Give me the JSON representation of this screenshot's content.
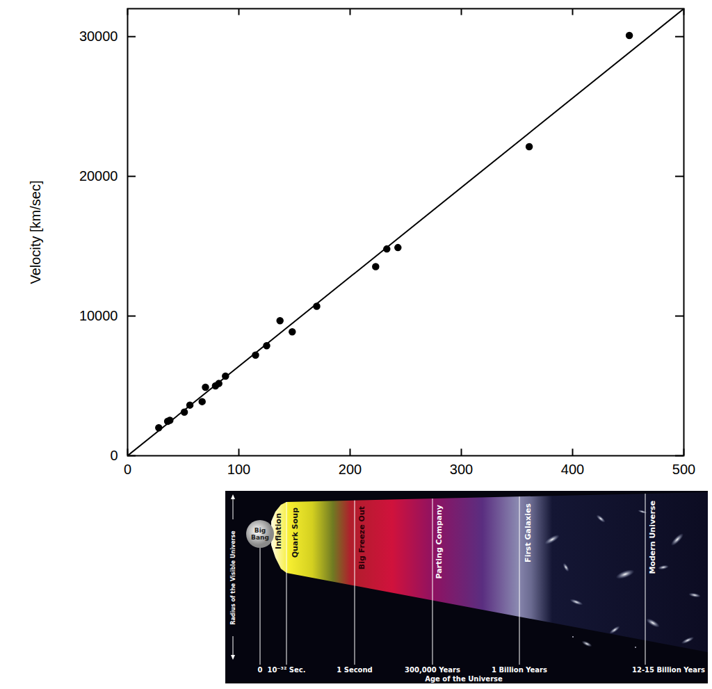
{
  "chart_data": {
    "type": "scatter",
    "ylabel": "Velocity [km/sec]",
    "series": [
      {
        "type": "scatter",
        "marker": "circle",
        "color": "#000000",
        "x": [
          28,
          36,
          38,
          51,
          56,
          67,
          70,
          79,
          82,
          88,
          115,
          125,
          137,
          148,
          170,
          223,
          233,
          243,
          361,
          451
        ],
        "values": [
          2000,
          2460,
          2540,
          3125,
          3625,
          3875,
          4900,
          5000,
          5170,
          5700,
          7200,
          7875,
          9670,
          8875,
          10700,
          13540,
          14800,
          14900,
          22125,
          30080
        ]
      },
      {
        "type": "line",
        "line_style": "solid",
        "color": "#000000",
        "x": [
          0,
          500
        ],
        "values": [
          0,
          32000
        ]
      }
    ],
    "xlim": [
      0,
      500
    ],
    "xticks": [
      0,
      100,
      200,
      300,
      400,
      500
    ],
    "ylim": [
      0,
      32000
    ],
    "yticks": [
      0,
      10000,
      20000,
      30000
    ]
  },
  "inset": {
    "title": "Age of the Universe",
    "side_label": "Radius of the Visible Universe",
    "origin": "Big Bang",
    "eras": [
      "Inflation",
      "Quark Soup",
      "Big Freeze Out",
      "Parting Company",
      "First Galaxies",
      "Modern Universe"
    ],
    "times": [
      "0",
      "10⁻³² Sec.",
      "1 Second",
      "300,000 Years",
      "1 Billion Years",
      "12-15 Billion Years"
    ]
  }
}
